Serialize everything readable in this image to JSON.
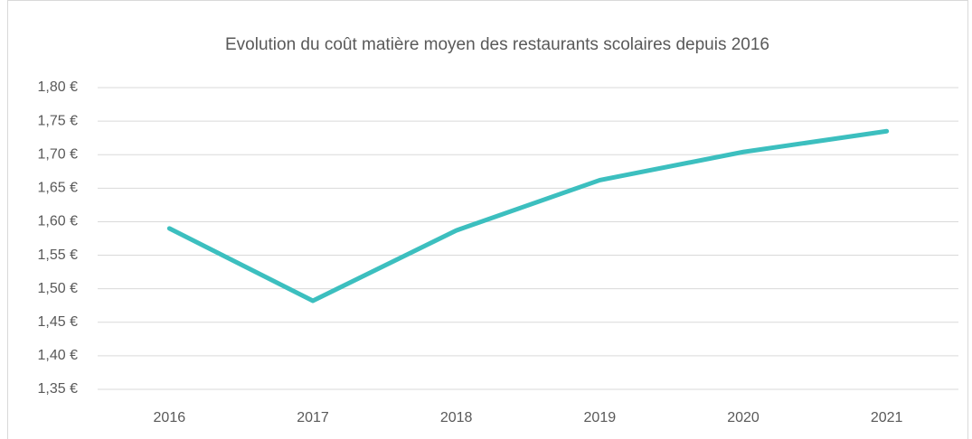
{
  "chart_data": {
    "type": "line",
    "title": "Evolution du coût matière moyen des restaurants scolaires depuis 2016",
    "categories": [
      "2016",
      "2017",
      "2018",
      "2019",
      "2020",
      "2021"
    ],
    "series": [
      {
        "name": "Coût matière moyen",
        "color": "#3cbfbf",
        "values": [
          1.59,
          1.482,
          1.587,
          1.662,
          1.704,
          1.735
        ]
      }
    ],
    "ylim": [
      1.35,
      1.8
    ],
    "yticks": [
      {
        "value": 1.35,
        "label": "1,35 €"
      },
      {
        "value": 1.4,
        "label": "1,40 €"
      },
      {
        "value": 1.45,
        "label": "1,45 €"
      },
      {
        "value": 1.5,
        "label": "1,50 €"
      },
      {
        "value": 1.55,
        "label": "1,55 €"
      },
      {
        "value": 1.6,
        "label": "1,60 €"
      },
      {
        "value": 1.65,
        "label": "1,65 €"
      },
      {
        "value": 1.7,
        "label": "1,70 €"
      },
      {
        "value": 1.75,
        "label": "1,75 €"
      },
      {
        "value": 1.8,
        "label": "1,80 €"
      }
    ],
    "grid": true,
    "legend": false
  }
}
